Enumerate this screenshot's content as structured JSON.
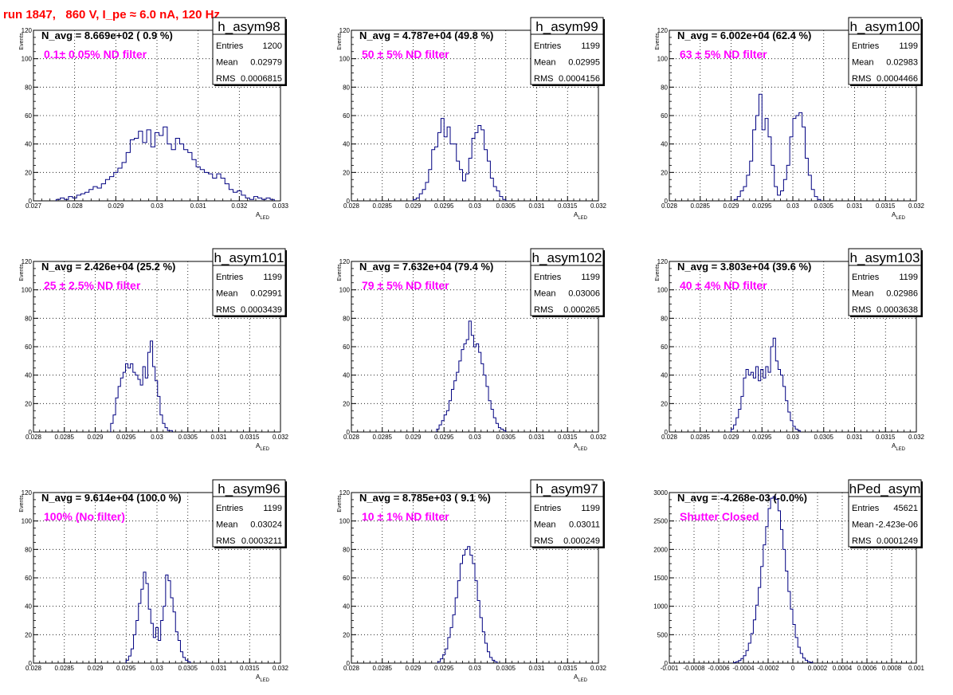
{
  "run_title": "run 1847,   860 V, I_pe ≈ 6.0 nA, 120 Hz",
  "colors": {
    "hist_line": "#000080",
    "title_text": "#ff0000",
    "filter_text": "#ff00ff",
    "grid": "#000000"
  },
  "chart_data": [
    {
      "type": "bar",
      "name": "h_asym98",
      "navg": "N_avg = 8.669e+02 ( 0.9 %)",
      "filter": "0.1± 0.05% ND filter",
      "stats": [
        [
          "Entries",
          "1200"
        ],
        [
          "Mean",
          "0.02979"
        ],
        [
          "RMS",
          "0.0006815"
        ]
      ],
      "xlabel": "A_LED",
      "ylabel": "Events",
      "xlim": [
        0.027,
        0.033
      ],
      "ylim": [
        0,
        120
      ],
      "xticks": [
        "0.027",
        "0.028",
        "0.029",
        "0.03",
        "0.031",
        "0.032",
        "0.033"
      ],
      "yticks": [
        "0",
        "20",
        "40",
        "60",
        "80",
        "100",
        "120"
      ],
      "xtick_values": [
        0.027,
        0.028,
        0.029,
        0.03,
        0.031,
        0.032,
        0.033
      ],
      "bin_start": 0.02755,
      "bin_width": 0.0001,
      "values": [
        1,
        2,
        1,
        3,
        2,
        4,
        5,
        6,
        8,
        10,
        9,
        12,
        15,
        17,
        20,
        23,
        27,
        34,
        43,
        44,
        49,
        41,
        50,
        38,
        48,
        46,
        52,
        40,
        36,
        44,
        40,
        36,
        34,
        29,
        24,
        22,
        20,
        19,
        16,
        19,
        16,
        12,
        8,
        6,
        7,
        4,
        2,
        1,
        3,
        2,
        1,
        2,
        1
      ]
    },
    {
      "type": "bar",
      "name": "h_asym99",
      "navg": "N_avg = 4.787e+04 (49.8 %)",
      "filter": "50 ± 5% ND filter",
      "stats": [
        [
          "Entries",
          "1199"
        ],
        [
          "Mean",
          "0.02995"
        ],
        [
          "RMS",
          "0.0004156"
        ]
      ],
      "xlabel": "A_LED",
      "ylabel": "Events",
      "xlim": [
        0.028,
        0.032
      ],
      "ylim": [
        0,
        120
      ],
      "xticks": [
        "0.028",
        "0.0285",
        "0.029",
        "0.0295",
        "0.03",
        "0.0305",
        "0.031",
        "0.0315",
        "0.032"
      ],
      "yticks": [
        "0",
        "20",
        "40",
        "60",
        "80",
        "100",
        "120"
      ],
      "xtick_values": [
        0.028,
        0.0285,
        0.029,
        0.0295,
        0.03,
        0.0305,
        0.031,
        0.0315,
        0.032
      ],
      "bin_start": 0.029,
      "bin_width": 5e-05,
      "values": [
        1,
        2,
        5,
        8,
        13,
        22,
        36,
        38,
        48,
        58,
        45,
        52,
        40,
        40,
        28,
        22,
        14,
        19,
        30,
        44,
        48,
        53,
        50,
        36,
        28,
        16,
        10,
        7,
        3,
        1
      ]
    },
    {
      "type": "bar",
      "name": "h_asym100",
      "navg": "N_avg = 6.002e+04 (62.4 %)",
      "filter": "63 ± 5% ND filter",
      "stats": [
        [
          "Entries",
          "1199"
        ],
        [
          "Mean",
          "0.02983"
        ],
        [
          "RMS",
          "0.0004466"
        ]
      ],
      "xlabel": "A_LED",
      "ylabel": "Events",
      "xlim": [
        0.028,
        0.032
      ],
      "ylim": [
        0,
        120
      ],
      "xticks": [
        "0.028",
        "0.0285",
        "0.029",
        "0.0295",
        "0.03",
        "0.0305",
        "0.031",
        "0.0315",
        "0.032"
      ],
      "yticks": [
        "0",
        "20",
        "40",
        "60",
        "80",
        "100",
        "120"
      ],
      "xtick_values": [
        0.028,
        0.0285,
        0.029,
        0.0295,
        0.03,
        0.0305,
        0.031,
        0.0315,
        0.032
      ],
      "bin_start": 0.02905,
      "bin_width": 5e-05,
      "values": [
        1,
        3,
        7,
        10,
        18,
        28,
        50,
        60,
        75,
        50,
        58,
        45,
        25,
        10,
        4,
        7,
        15,
        25,
        45,
        58,
        60,
        62,
        52,
        30,
        18,
        8,
        3,
        1
      ]
    },
    {
      "type": "bar",
      "name": "h_asym101",
      "navg": "N_avg = 2.426e+04 (25.2 %)",
      "filter": "25 ± 2.5% ND filter",
      "stats": [
        [
          "Entries",
          "1199"
        ],
        [
          "Mean",
          "0.02991"
        ],
        [
          "RMS",
          "0.0003439"
        ]
      ],
      "xlabel": "A_LED",
      "ylabel": "Events",
      "xlim": [
        0.028,
        0.032
      ],
      "ylim": [
        0,
        120
      ],
      "xticks": [
        "0.028",
        "0.0285",
        "0.029",
        "0.0295",
        "0.03",
        "0.0305",
        "0.031",
        "0.0315",
        "0.032"
      ],
      "yticks": [
        "0",
        "20",
        "40",
        "60",
        "80",
        "100",
        "120"
      ],
      "xtick_values": [
        0.028,
        0.0285,
        0.029,
        0.0295,
        0.03,
        0.0305,
        0.031,
        0.0315,
        0.032
      ],
      "bin_start": 0.02925,
      "bin_width": 4e-05,
      "values": [
        6,
        12,
        24,
        32,
        38,
        42,
        48,
        45,
        48,
        42,
        40,
        37,
        33,
        46,
        38,
        56,
        64,
        46,
        36,
        25,
        12,
        6,
        3,
        1,
        1
      ]
    },
    {
      "type": "bar",
      "name": "h_asym102",
      "navg": "N_avg = 7.632e+04 (79.4 %)",
      "filter": "79 ± 5% ND filter",
      "stats": [
        [
          "Entries",
          "1199"
        ],
        [
          "Mean",
          "0.03006"
        ],
        [
          "RMS",
          "0.000265"
        ]
      ],
      "xlabel": "A_LED",
      "ylabel": "Events",
      "xlim": [
        0.028,
        0.032
      ],
      "ylim": [
        0,
        120
      ],
      "xticks": [
        "0.028",
        "0.0285",
        "0.029",
        "0.0295",
        "0.03",
        "0.0305",
        "0.031",
        "0.0315",
        "0.032"
      ],
      "yticks": [
        "0",
        "20",
        "40",
        "60",
        "80",
        "100",
        "120"
      ],
      "xtick_values": [
        0.028,
        0.0285,
        0.029,
        0.0295,
        0.03,
        0.0305,
        0.031,
        0.0315,
        0.032
      ],
      "bin_start": 0.02938,
      "bin_width": 4e-05,
      "values": [
        2,
        5,
        8,
        12,
        15,
        22,
        30,
        36,
        42,
        50,
        58,
        62,
        65,
        78,
        68,
        60,
        62,
        56,
        48,
        40,
        32,
        22,
        16,
        10,
        6,
        3,
        2,
        1
      ]
    },
    {
      "type": "bar",
      "name": "h_asym103",
      "navg": "N_avg = 3.803e+04 (39.6 %)",
      "filter": "40 ± 4% ND filter",
      "stats": [
        [
          "Entries",
          "1199"
        ],
        [
          "Mean",
          "0.02986"
        ],
        [
          "RMS",
          "0.0003638"
        ]
      ],
      "xlabel": "A_LED",
      "ylabel": "Events",
      "xlim": [
        0.028,
        0.032
      ],
      "ylim": [
        0,
        120
      ],
      "xticks": [
        "0.028",
        "0.0285",
        "0.029",
        "0.0295",
        "0.03",
        "0.0305",
        "0.031",
        "0.0315",
        "0.032"
      ],
      "yticks": [
        "0",
        "20",
        "40",
        "60",
        "80",
        "100",
        "120"
      ],
      "xtick_values": [
        0.028,
        0.0285,
        0.029,
        0.0295,
        0.03,
        0.0305,
        0.031,
        0.0315,
        0.032
      ],
      "bin_start": 0.029,
      "bin_width": 4e-05,
      "values": [
        2,
        5,
        10,
        16,
        25,
        38,
        44,
        40,
        42,
        38,
        46,
        36,
        44,
        38,
        46,
        42,
        60,
        66,
        50,
        44,
        40,
        32,
        22,
        14,
        8,
        4,
        2,
        1
      ]
    },
    {
      "type": "bar",
      "name": "h_asym96",
      "navg": "N_avg = 9.614e+04 (100.0 %)",
      "filter": "100% (No filter)",
      "stats": [
        [
          "Entries",
          "1199"
        ],
        [
          "Mean",
          "0.03024"
        ],
        [
          "RMS",
          "0.0003211"
        ]
      ],
      "xlabel": "A_LED",
      "ylabel": "Events",
      "xlim": [
        0.028,
        0.032
      ],
      "ylim": [
        0,
        120
      ],
      "xticks": [
        "0.028",
        "0.0285",
        "0.029",
        "0.0295",
        "0.03",
        "0.0305",
        "0.031",
        "0.0315",
        "0.032"
      ],
      "yticks": [
        "0",
        "20",
        "40",
        "60",
        "80",
        "100",
        "120"
      ],
      "xtick_values": [
        0.028,
        0.0285,
        0.029,
        0.0295,
        0.03,
        0.0305,
        0.031,
        0.0315,
        0.032
      ],
      "bin_start": 0.0295,
      "bin_width": 4e-05,
      "values": [
        2,
        5,
        10,
        20,
        30,
        42,
        52,
        64,
        56,
        38,
        28,
        18,
        25,
        16,
        30,
        40,
        62,
        58,
        46,
        36,
        22,
        16,
        8,
        4,
        2,
        1
      ]
    },
    {
      "type": "bar",
      "name": "h_asym97",
      "navg": "N_avg = 8.785e+03 ( 9.1 %)",
      "filter": "10 ± 1% ND filter",
      "stats": [
        [
          "Entries",
          "1199"
        ],
        [
          "Mean",
          "0.03011"
        ],
        [
          "RMS",
          "0.000249"
        ]
      ],
      "xlabel": "A_LED",
      "ylabel": "Events",
      "xlim": [
        0.028,
        0.032
      ],
      "ylim": [
        0,
        120
      ],
      "xticks": [
        "0.028",
        "0.0285",
        "0.029",
        "0.0295",
        "0.03",
        "0.0305",
        "0.031",
        "0.0315",
        "0.032"
      ],
      "yticks": [
        "0",
        "20",
        "40",
        "60",
        "80",
        "100",
        "120"
      ],
      "xtick_values": [
        0.028,
        0.0285,
        0.029,
        0.0295,
        0.03,
        0.0305,
        0.031,
        0.0315,
        0.032
      ],
      "bin_start": 0.0294,
      "bin_width": 4e-05,
      "values": [
        1,
        3,
        6,
        10,
        18,
        25,
        34,
        46,
        58,
        70,
        76,
        80,
        82,
        76,
        70,
        58,
        44,
        32,
        22,
        14,
        8,
        4,
        2,
        1
      ]
    },
    {
      "type": "bar",
      "name": "hPed_asym",
      "navg": "N_avg = -4.268e-03 (-0.0%)",
      "filter": "Shutter Closed",
      "stats": [
        [
          "Entries",
          "45621"
        ],
        [
          "Mean",
          "-2.423e-06"
        ],
        [
          "RMS",
          "0.0001249"
        ]
      ],
      "xlabel": "",
      "ylabel": "",
      "xlim": [
        -0.001,
        0.001
      ],
      "ylim": [
        0,
        3000
      ],
      "xticks": [
        "-0.001",
        "-0.0008",
        "-0.0006",
        "-0.0004",
        "-0.0002",
        "0",
        "0.0002",
        "0.0004",
        "0.0006",
        "0.0008",
        "0.001"
      ],
      "yticks": [
        "0",
        "500",
        "1000",
        "1500",
        "2000",
        "2500",
        "3000"
      ],
      "xtick_values": [
        -0.001,
        -0.0008,
        -0.0006,
        -0.0004,
        -0.0002,
        0,
        0.0002,
        0.0004,
        0.0006,
        0.0008,
        0.001
      ],
      "bin_start": -0.00048,
      "bin_width": 2e-05,
      "values": [
        10,
        25,
        45,
        80,
        130,
        220,
        350,
        520,
        760,
        1020,
        1330,
        1700,
        2080,
        2400,
        2720,
        2900,
        2930,
        2880,
        2680,
        2350,
        2000,
        1620,
        1260,
        950,
        680,
        450,
        280,
        170,
        90,
        50,
        25,
        12
      ]
    }
  ]
}
